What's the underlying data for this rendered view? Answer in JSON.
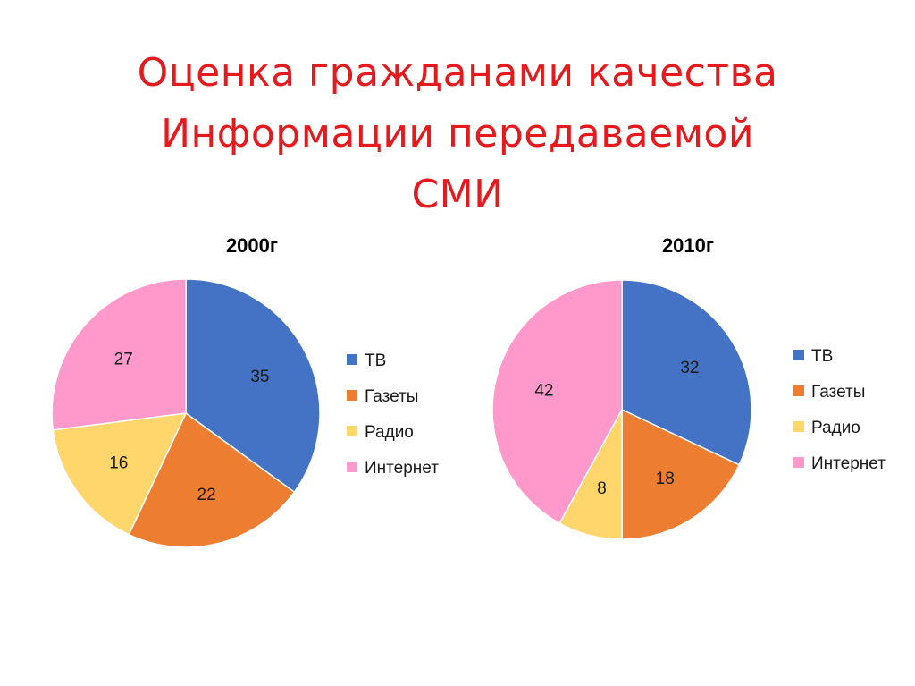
{
  "slide": {
    "title_lines": [
      "Оценка гражданами качества",
      "Информации передаваемой",
      "СМИ"
    ],
    "title_color": "#e8191c"
  },
  "colors": {
    "ТВ": "#4472c4",
    "Газеты": "#ed7d31",
    "Радио": "#ffd66b",
    "Интернет": "#ff99cc"
  },
  "chart_data": [
    {
      "type": "pie",
      "title": "2000г",
      "categories": [
        "ТВ",
        "Газеты",
        "Радио",
        "Интернет"
      ],
      "values": [
        35,
        22,
        16,
        27
      ],
      "legend_position": "right"
    },
    {
      "type": "pie",
      "title": "2010г",
      "categories": [
        "ТВ",
        "Газеты",
        "Радио",
        "Интернет"
      ],
      "values": [
        32,
        18,
        8,
        42
      ],
      "legend_position": "right"
    }
  ]
}
